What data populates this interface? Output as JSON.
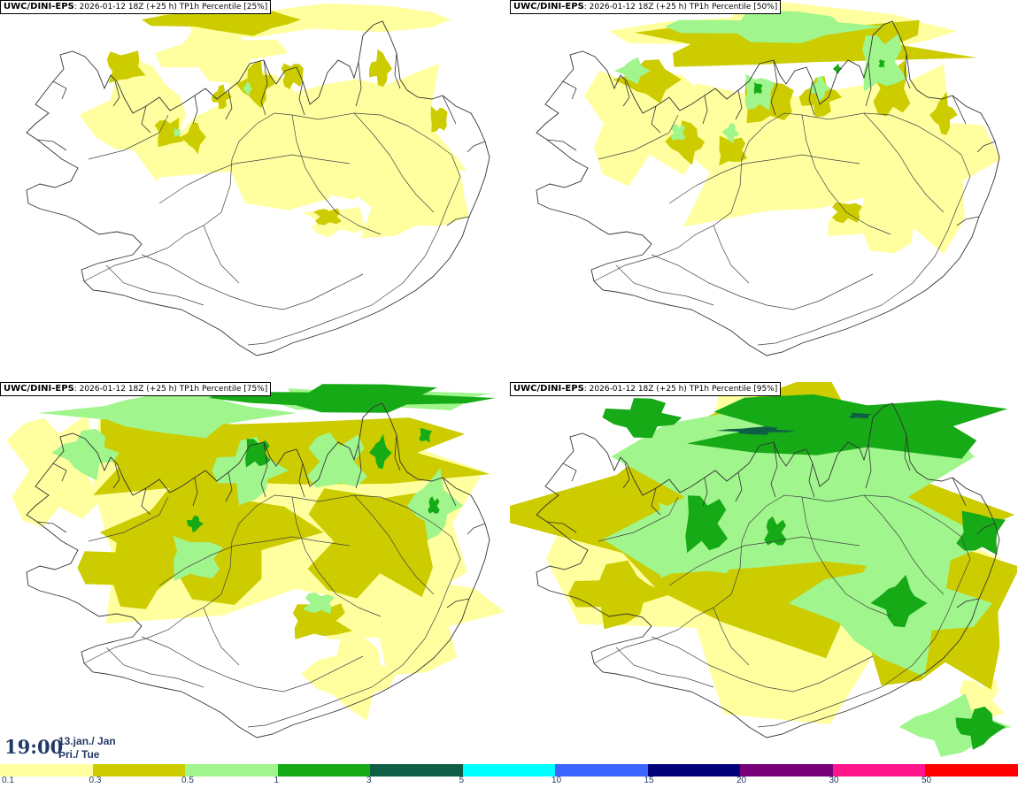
{
  "panels": [
    {
      "model": "UWC/DINI-EPS",
      "info": ": 2026-01-12 18Z (+25 h) TP1h Percentile [25%]",
      "level": 0
    },
    {
      "model": "UWC/DINI-EPS",
      "info": ": 2026-01-12 18Z (+25 h) TP1h Percentile [50%]",
      "level": 1
    },
    {
      "model": "UWC/DINI-EPS",
      "info": ": 2026-01-12 18Z (+25 h) TP1h Percentile [75%]",
      "level": 2
    },
    {
      "model": "UWC/DINI-EPS",
      "info": ": 2026-01-12 18Z (+25 h) TP1h Percentile [95%]",
      "level": 3
    }
  ],
  "valid_time": {
    "time": "19:00",
    "date": "13.jan./ Jan",
    "day": "Þri./ Tue"
  },
  "legend": {
    "colors": [
      "#ffff9f",
      "#cccc00",
      "#a0f58c",
      "#16aa16",
      "#0f5f46",
      "#00ffff",
      "#3c64ff",
      "#000078",
      "#780078",
      "#ff148c",
      "#ff0000"
    ],
    "ticks": [
      "0.1",
      "0.3",
      "0.5",
      "1",
      "3",
      "5",
      "10",
      "15",
      "20",
      "30",
      "50"
    ]
  }
}
